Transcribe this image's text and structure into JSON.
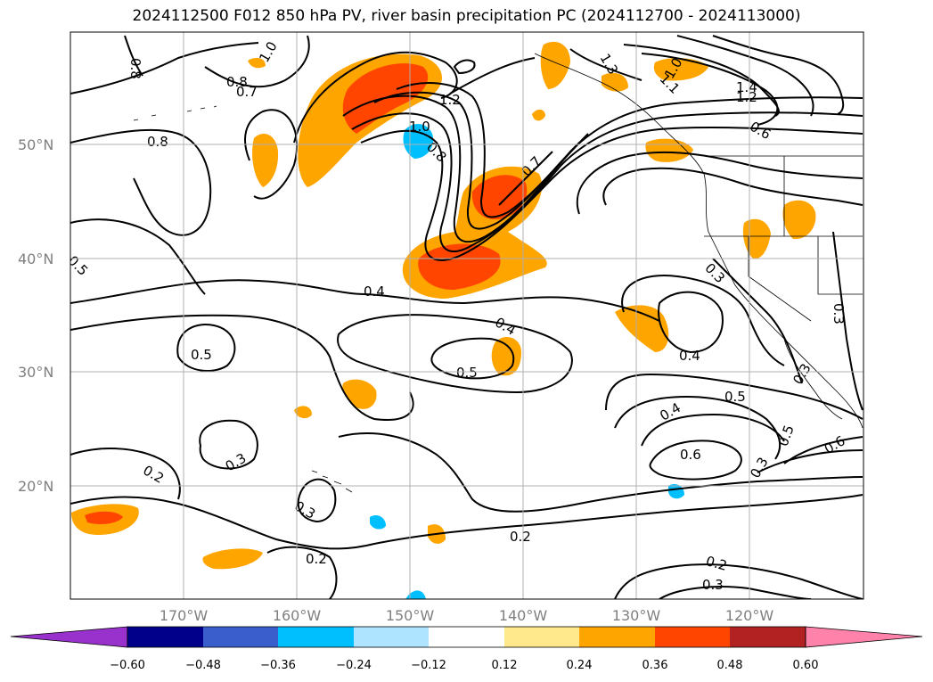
{
  "title": "2024112500 F012 850 hPa PV, river basin precipitation PC (2024112700 - 2024113000)",
  "map": {
    "lat_labels": [
      "50°N",
      "40°N",
      "30°N",
      "20°N"
    ],
    "lon_labels": [
      "170°W",
      "160°W",
      "150°W",
      "140°W",
      "130°W",
      "120°W"
    ],
    "contour_labels": [
      "0.8",
      "1.0",
      "0.8",
      "0.7",
      "1.2",
      "1.0",
      "0.8",
      "0.7",
      "1.4",
      "1.2",
      "0.8",
      "1.1",
      "0.6",
      "1.0",
      "0.5",
      "0.4",
      "0.3",
      "0.5",
      "0.4",
      "0.5",
      "0.4",
      "0.3",
      "0.4",
      "0.5",
      "0.6",
      "0.5",
      "0.3",
      "0.3",
      "0.6",
      "0.2",
      "0.3",
      "0.3",
      "0.2",
      "0.2",
      "0.2",
      "0.3",
      "1.3"
    ],
    "colors": {
      "contour": "#000000",
      "grid": "#b0b0b0",
      "yellow": "#ffe98c",
      "orange": "#ffa500",
      "red_orange": "#ff4500",
      "light_blue": "#aee4ff",
      "cyan_blue": "#00bfff"
    }
  },
  "colorbar": {
    "ticks": [
      "−0.60",
      "−0.48",
      "−0.36",
      "−0.24",
      "−0.12",
      "0.12",
      "0.24",
      "0.36",
      "0.48",
      "0.60"
    ],
    "colors": [
      "#9932cc",
      "#00008b",
      "#3a5fcd",
      "#00bfff",
      "#aee4ff",
      "#ffffff",
      "#ffe98c",
      "#ffa500",
      "#ff4500",
      "#b22222",
      "#ff82ab"
    ]
  }
}
